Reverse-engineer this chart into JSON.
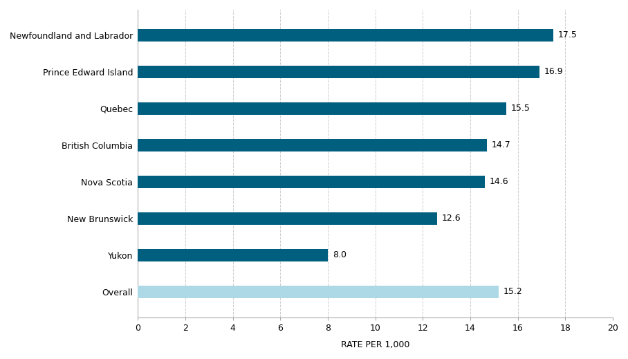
{
  "categories": [
    "Newfoundland and Labrador",
    "Prince Edward Island",
    "Quebec",
    "British Columbia",
    "Nova Scotia",
    "New Brunswick",
    "Yukon",
    "Overall"
  ],
  "values": [
    17.5,
    16.9,
    15.5,
    14.7,
    14.6,
    12.6,
    8.0,
    15.2
  ],
  "bar_colors": [
    "#005f7f",
    "#005f7f",
    "#005f7f",
    "#005f7f",
    "#005f7f",
    "#005f7f",
    "#005f7f",
    "#add8e6"
  ],
  "xlabel": "RATE PER 1,000",
  "xlim": [
    0,
    20
  ],
  "xticks": [
    0,
    2,
    4,
    6,
    8,
    10,
    12,
    14,
    16,
    18,
    20
  ],
  "background_color": "#ffffff",
  "bar_height": 0.35,
  "label_fontsize": 9,
  "xlabel_fontsize": 9,
  "tick_fontsize": 9,
  "value_label_fontsize": 9
}
